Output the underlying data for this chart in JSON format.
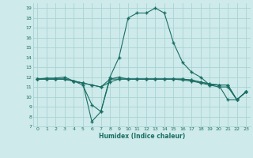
{
  "xlabel": "Humidex (Indice chaleur)",
  "bg_color": "#ceeaea",
  "grid_color": "#aad4d4",
  "line_color": "#1a6e64",
  "xlim": [
    -0.5,
    23.5
  ],
  "ylim": [
    7,
    19.5
  ],
  "yticks": [
    7,
    8,
    9,
    10,
    11,
    12,
    13,
    14,
    15,
    16,
    17,
    18,
    19
  ],
  "xticks": [
    0,
    1,
    2,
    3,
    4,
    5,
    6,
    7,
    8,
    9,
    10,
    11,
    12,
    13,
    14,
    15,
    16,
    17,
    18,
    19,
    20,
    21,
    22,
    23
  ],
  "series": [
    [
      11.8,
      11.9,
      11.9,
      12.0,
      11.6,
      11.2,
      9.2,
      8.5,
      12.0,
      14.0,
      18.0,
      18.5,
      18.5,
      19.0,
      18.5,
      15.5,
      13.5,
      12.5,
      12.0,
      11.2,
      11.2,
      11.2,
      9.7,
      10.5
    ],
    [
      11.8,
      11.8,
      11.8,
      11.8,
      11.6,
      11.4,
      7.5,
      8.5,
      11.8,
      12.0,
      11.8,
      11.8,
      11.8,
      11.8,
      11.8,
      11.8,
      11.8,
      11.7,
      11.5,
      11.3,
      11.2,
      9.7,
      9.7,
      10.5
    ],
    [
      11.8,
      11.8,
      11.8,
      11.8,
      11.6,
      11.4,
      11.2,
      11.0,
      11.8,
      11.8,
      11.8,
      11.8,
      11.8,
      11.8,
      11.8,
      11.8,
      11.8,
      11.7,
      11.5,
      11.3,
      11.2,
      11.2,
      9.7,
      10.5
    ],
    [
      11.8,
      11.8,
      11.8,
      11.8,
      11.6,
      11.4,
      11.2,
      11.0,
      11.5,
      11.8,
      11.8,
      11.8,
      11.8,
      11.8,
      11.8,
      11.8,
      11.7,
      11.6,
      11.4,
      11.2,
      11.0,
      11.0,
      9.7,
      10.5
    ]
  ]
}
